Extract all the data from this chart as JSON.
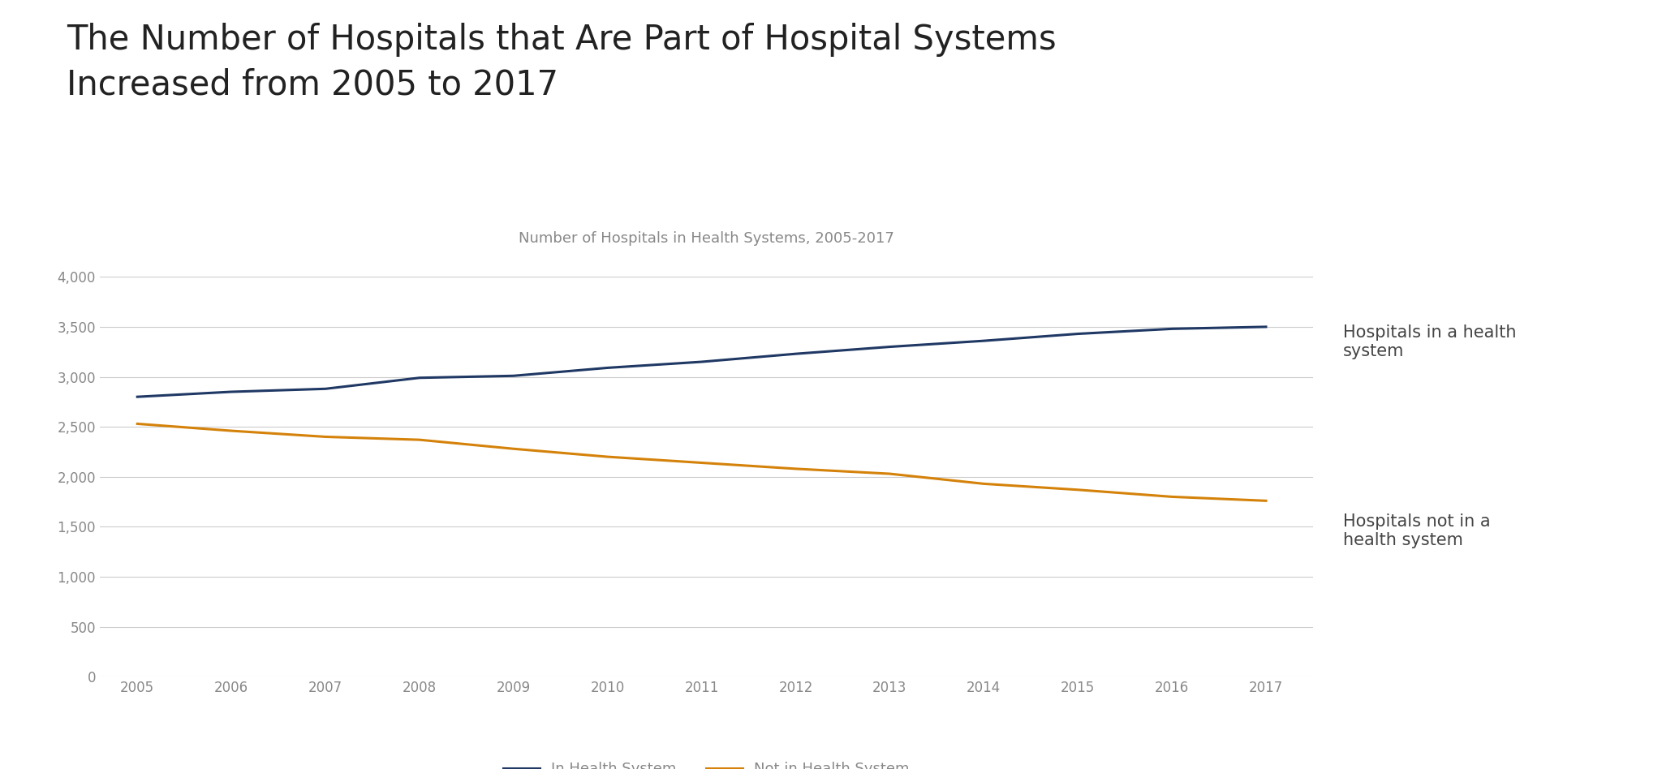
{
  "title_line1": "The Number of Hospitals that Are Part of Hospital Systems",
  "title_line2": "Increased from 2005 to 2017",
  "subtitle": "Number of Hospitals in Health Systems, 2005-2017",
  "years": [
    2005,
    2006,
    2007,
    2008,
    2009,
    2010,
    2011,
    2012,
    2013,
    2014,
    2015,
    2016,
    2017
  ],
  "in_health_system": [
    2800,
    2850,
    2880,
    2990,
    3010,
    3090,
    3150,
    3230,
    3300,
    3360,
    3430,
    3480,
    3500
  ],
  "not_in_health_system": [
    2530,
    2460,
    2400,
    2370,
    2280,
    2200,
    2140,
    2080,
    2030,
    1930,
    1870,
    1800,
    1760
  ],
  "in_color": "#1f3864",
  "not_color": "#d4820a",
  "background_color": "#ffffff",
  "label_in": "In Health System",
  "label_not": "Not in Health System",
  "annotation_in": "Hospitals in a health\nsystem",
  "annotation_not": "Hospitals not in a\nhealth system",
  "ylim": [
    0,
    4000
  ],
  "yticks": [
    0,
    500,
    1000,
    1500,
    2000,
    2500,
    3000,
    3500,
    4000
  ],
  "title_fontsize": 30,
  "subtitle_fontsize": 13,
  "tick_fontsize": 12,
  "legend_fontsize": 13,
  "annotation_fontsize": 15,
  "line_width": 2.2,
  "title_color": "#222222",
  "tick_color": "#888888",
  "grid_color": "#cccccc",
  "subtitle_color": "#888888",
  "annotation_color": "#444444"
}
